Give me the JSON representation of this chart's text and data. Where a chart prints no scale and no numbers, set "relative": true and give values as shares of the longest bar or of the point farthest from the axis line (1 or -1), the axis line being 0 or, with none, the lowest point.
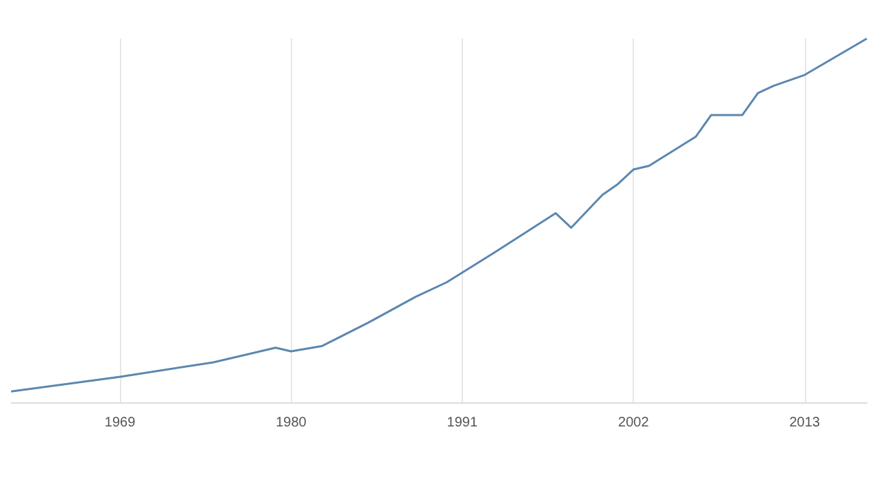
{
  "chart_data": {
    "type": "line",
    "relative": true,
    "x": [
      1962,
      1969,
      1975,
      1979,
      1980,
      1982,
      1985,
      1988,
      1990,
      1993,
      1997,
      1998,
      2000,
      2001,
      2002,
      2003,
      2006,
      2007,
      2009,
      2010,
      2011,
      2013,
      2017
    ],
    "series": [
      {
        "color": "#5b87b0",
        "values": [
          0.03,
          0.07,
          0.11,
          0.15,
          0.14,
          0.155,
          0.22,
          0.29,
          0.33,
          0.41,
          0.52,
          0.48,
          0.57,
          0.6,
          0.64,
          0.65,
          0.73,
          0.79,
          0.79,
          0.85,
          0.87,
          0.9,
          1
        ]
      }
    ],
    "xlim": [
      1962,
      2017
    ],
    "xticks": [
      1969,
      1980,
      1991,
      2002,
      2013
    ],
    "grid": "x",
    "marker": "none",
    "line_style": "solid"
  }
}
